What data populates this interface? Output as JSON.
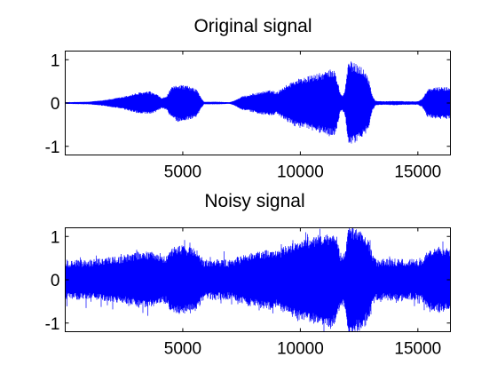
{
  "chart_data": [
    {
      "type": "line",
      "title": "Original signal",
      "xlabel": "",
      "ylabel": "",
      "xlim": [
        0,
        16384
      ],
      "ylim": [
        -1.2,
        1.2
      ],
      "xticks": [
        5000,
        10000,
        15000
      ],
      "yticks": [
        -1,
        0,
        1
      ],
      "x_tick_labels": [
        "5000",
        "10000",
        "15000"
      ],
      "y_tick_labels": [
        "-1",
        "0",
        "1"
      ],
      "grid": false,
      "series": [
        {
          "color": "#0000ff",
          "envelope_x": [
            0,
            1000,
            1500,
            2000,
            2500,
            2800,
            3200,
            3600,
            3900,
            4100,
            4300,
            4500,
            4800,
            5200,
            5600,
            5750,
            5900,
            6500,
            7000,
            7200,
            7500,
            8000,
            8500,
            8800,
            9000,
            9200,
            9500,
            9800,
            10200,
            10600,
            11000,
            11300,
            11500,
            11700,
            11800,
            11900,
            12050,
            12200,
            12400,
            12600,
            12800,
            12950,
            13050,
            13200,
            13600,
            14000,
            14500,
            15000,
            15200,
            15400,
            15600,
            16000,
            16384
          ],
          "envelope_amp": [
            0.02,
            0.03,
            0.06,
            0.1,
            0.15,
            0.2,
            0.25,
            0.27,
            0.2,
            0.12,
            0.15,
            0.35,
            0.44,
            0.4,
            0.32,
            0.15,
            0.03,
            0.03,
            0.02,
            0.06,
            0.15,
            0.22,
            0.28,
            0.3,
            0.25,
            0.35,
            0.45,
            0.55,
            0.6,
            0.66,
            0.72,
            0.78,
            0.74,
            0.22,
            0.18,
            0.3,
            1.0,
            0.95,
            0.9,
            0.85,
            0.7,
            0.5,
            0.2,
            0.05,
            0.04,
            0.05,
            0.04,
            0.04,
            0.1,
            0.32,
            0.35,
            0.38,
            0.36
          ]
        }
      ]
    },
    {
      "type": "line",
      "title": "Noisy signal",
      "xlabel": "",
      "ylabel": "",
      "xlim": [
        0,
        16384
      ],
      "ylim": [
        -1.2,
        1.2
      ],
      "xticks": [
        5000,
        10000,
        15000
      ],
      "yticks": [
        -1,
        0,
        1
      ],
      "x_tick_labels": [
        "5000",
        "10000",
        "15000"
      ],
      "y_tick_labels": [
        "-1",
        "0",
        "1"
      ],
      "grid": false,
      "series": [
        {
          "color": "#0000ff",
          "noise_level": 0.45,
          "based_on": "Original signal"
        }
      ]
    }
  ]
}
